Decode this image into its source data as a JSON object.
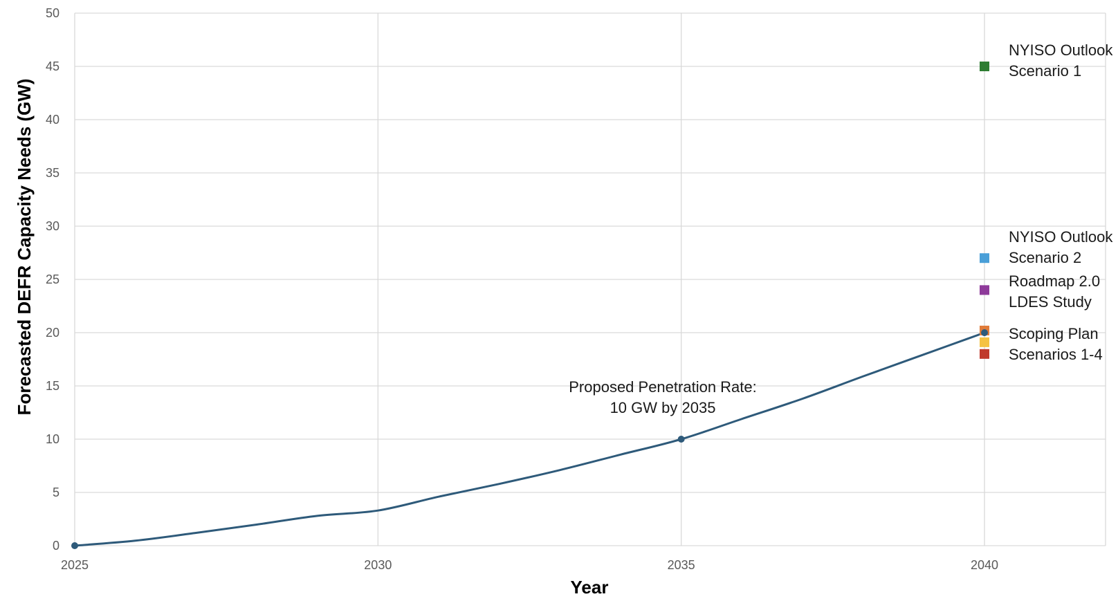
{
  "chart_data": {
    "type": "line",
    "xlabel": "Year",
    "ylabel": "Forecasted DEFR  Capacity Needs (GW)",
    "xlim": [
      2025,
      2042
    ],
    "ylim": [
      0,
      50
    ],
    "x_ticks": [
      "2025",
      "2030",
      "2035",
      "2040"
    ],
    "y_ticks": [
      "0",
      "5",
      "10",
      "15",
      "20",
      "25",
      "30",
      "35",
      "40",
      "45",
      "50"
    ],
    "grid": true,
    "series": [
      {
        "color": "#2e5a7a",
        "x": [
          2025,
          2026,
          2027,
          2028,
          2029,
          2030,
          2031,
          2032,
          2033,
          2034,
          2035,
          2036,
          2037,
          2038,
          2039,
          2040
        ],
        "y": [
          0,
          0.47,
          1.2,
          1.98,
          2.8,
          3.3,
          4.6,
          5.8,
          7.1,
          8.55,
          10.0,
          11.9,
          13.8,
          15.9,
          17.95,
          20.0
        ],
        "markers_at": [
          2025,
          2035,
          2040
        ]
      }
    ],
    "points": [
      {
        "x": 2040,
        "y": 45.0,
        "color": "#2e7d32"
      },
      {
        "x": 2040,
        "y": 27.0,
        "color": "#4a9fd8"
      },
      {
        "x": 2040,
        "y": 24.0,
        "color": "#8e3a9a"
      },
      {
        "x": 2040,
        "y": 20.2,
        "color": "#e07b39"
      },
      {
        "x": 2040,
        "y": 19.1,
        "color": "#f5c242"
      },
      {
        "x": 2040,
        "y": 18.0,
        "color": "#c0392b"
      }
    ],
    "annotations": [
      {
        "id": "outlook1",
        "lines": [
          "NYISO Outlook",
          "Scenario 1"
        ]
      },
      {
        "id": "outlook2",
        "lines": [
          "NYISO Outlook",
          "Scenario 2"
        ]
      },
      {
        "id": "roadmap",
        "lines": [
          "Roadmap 2.0",
          "LDES Study"
        ]
      },
      {
        "id": "scoping",
        "lines": [
          "Scoping Plan",
          "Scenarios 1-4"
        ]
      },
      {
        "id": "penetration",
        "lines": [
          "Proposed Penetration Rate:",
          "10 GW by 2035"
        ]
      }
    ]
  }
}
